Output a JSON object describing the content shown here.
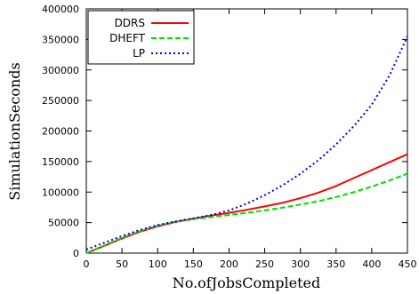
{
  "chart_data": {
    "type": "line",
    "xlabel": "No.ofJobsCompleted",
    "ylabel": "SimulationSeconds",
    "xlim": [
      0,
      450
    ],
    "ylim": [
      0,
      400000
    ],
    "x_ticks": [
      0,
      50,
      100,
      150,
      200,
      250,
      300,
      350,
      400,
      450
    ],
    "y_ticks": [
      0,
      50000,
      100000,
      150000,
      200000,
      250000,
      300000,
      350000,
      400000
    ],
    "grid": false,
    "legend_position": "top-left",
    "series": [
      {
        "name": "DDRS",
        "color": "#ff0000",
        "dash": "solid",
        "x": [
          0,
          25,
          50,
          75,
          100,
          125,
          150,
          175,
          200,
          225,
          250,
          275,
          300,
          325,
          350,
          375,
          400,
          425,
          450
        ],
        "y": [
          0,
          12000,
          24000,
          35000,
          44000,
          51000,
          56500,
          61500,
          66000,
          71000,
          76500,
          82500,
          90000,
          99000,
          110000,
          123000,
          136000,
          149000,
          162000
        ]
      },
      {
        "name": "DHEFT",
        "color": "#00dd00",
        "dash": "dashed",
        "x": [
          0,
          25,
          50,
          75,
          100,
          125,
          150,
          175,
          200,
          225,
          250,
          275,
          300,
          325,
          350,
          375,
          400,
          425,
          450
        ],
        "y": [
          0,
          12500,
          25000,
          36000,
          45000,
          51500,
          55500,
          59000,
          62500,
          66000,
          70000,
          74500,
          79500,
          85000,
          92000,
          100000,
          109000,
          119000,
          130000
        ]
      },
      {
        "name": "LP",
        "color": "#0000ee",
        "dash": "dotted",
        "x": [
          0,
          25,
          50,
          75,
          100,
          125,
          150,
          175,
          200,
          225,
          250,
          275,
          300,
          325,
          350,
          375,
          400,
          425,
          450
        ],
        "y": [
          6000,
          17000,
          28000,
          38000,
          46000,
          52000,
          57000,
          62500,
          70000,
          81000,
          95000,
          111000,
          130000,
          152000,
          178000,
          208000,
          243000,
          291000,
          355000
        ]
      }
    ]
  }
}
